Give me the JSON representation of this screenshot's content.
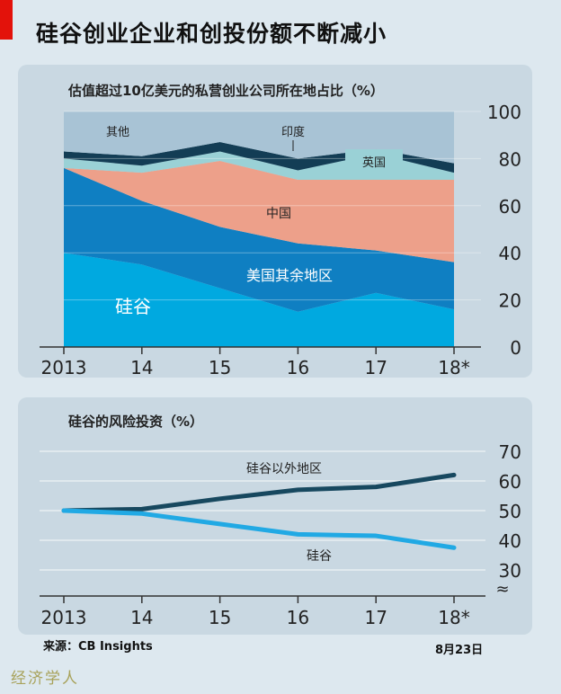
{
  "title": "硅谷创业企业和创投份额不断减小",
  "source": "来源：CB Insights",
  "date": "8月23日",
  "watermark": "经济学人",
  "chart_data": [
    {
      "type": "area",
      "stacked": true,
      "title": "估值超过10亿美元的私营创业公司所在地占比（%）",
      "x": [
        "2013",
        "14",
        "15",
        "16",
        "17",
        "18*"
      ],
      "ylim": [
        0,
        100
      ],
      "yticks": [
        "0",
        "20",
        "40",
        "60",
        "80",
        "100"
      ],
      "series": [
        {
          "name": "硅谷",
          "values": [
            40,
            35,
            25,
            15,
            23,
            16
          ],
          "color": "#00a9e0"
        },
        {
          "name": "美国其余地区",
          "values": [
            36,
            27,
            26,
            29,
            18,
            20
          ],
          "color": "#0f7fc2"
        },
        {
          "name": "中国",
          "values": [
            0,
            12,
            28,
            27,
            30,
            35
          ],
          "color": "#eda08a"
        },
        {
          "name": "英国",
          "values": [
            4,
            3,
            4,
            4,
            11,
            3
          ],
          "color": "#9ad1d6"
        },
        {
          "name": "印度",
          "values": [
            3,
            4,
            4,
            5,
            2,
            4
          ],
          "color": "#133d55"
        },
        {
          "name": "其他",
          "values": [
            17,
            19,
            13,
            20,
            16,
            22
          ],
          "color": "#a8c3d5"
        }
      ]
    },
    {
      "type": "line",
      "title": "硅谷的风险投资（%）",
      "x": [
        "2013",
        "14",
        "15",
        "16",
        "17",
        "18*"
      ],
      "ylim": [
        30,
        70
      ],
      "yticks": [
        "30",
        "40",
        "50",
        "60",
        "70"
      ],
      "axis_break": true,
      "series": [
        {
          "name": "硅谷以外地区",
          "values": [
            50,
            50.5,
            54,
            57,
            58,
            62
          ],
          "color": "#17485f"
        },
        {
          "name": "硅谷",
          "values": [
            50,
            49,
            45.5,
            42,
            41.5,
            37.5
          ],
          "color": "#21a9e4"
        }
      ]
    }
  ]
}
